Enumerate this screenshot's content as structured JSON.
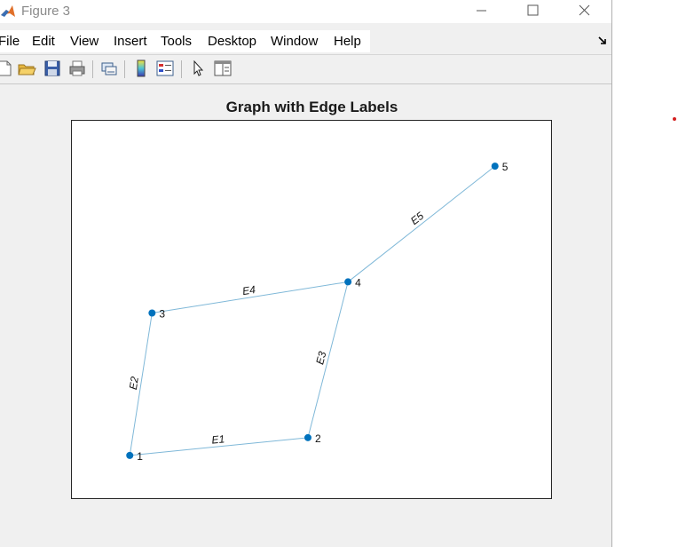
{
  "window": {
    "title": "Figure 3",
    "buttons": [
      "minimize",
      "maximize",
      "close"
    ]
  },
  "menu": {
    "items": [
      "File",
      "Edit",
      "View",
      "Insert",
      "Tools",
      "Desktop",
      "Window",
      "Help"
    ]
  },
  "toolbar": {
    "icons": [
      "new-figure-icon",
      "open-file-icon",
      "save-icon",
      "print-icon",
      "link-plot-icon",
      "colorbar-icon",
      "legend-icon",
      "pointer-icon",
      "property-inspector-icon"
    ]
  },
  "plot": {
    "title": "Graph with Edge Labels",
    "node_color": "#0072bd",
    "edge_color": "#7fb8d8"
  },
  "chart_data": {
    "type": "graph",
    "title": "Graph with Edge Labels",
    "nodes": [
      {
        "id": "1",
        "label": "1",
        "x": 1.0,
        "y": 1.0
      },
      {
        "id": "2",
        "label": "2",
        "x": 3.0,
        "y": 1.2
      },
      {
        "id": "3",
        "label": "3",
        "x": 1.25,
        "y": 2.6
      },
      {
        "id": "4",
        "label": "4",
        "x": 3.45,
        "y": 2.95
      },
      {
        "id": "5",
        "label": "5",
        "x": 5.1,
        "y": 4.25
      }
    ],
    "edges": [
      {
        "source": "1",
        "target": "2",
        "label": "E1"
      },
      {
        "source": "1",
        "target": "3",
        "label": "E2"
      },
      {
        "source": "2",
        "target": "4",
        "label": "E3"
      },
      {
        "source": "3",
        "target": "4",
        "label": "E4"
      },
      {
        "source": "4",
        "target": "5",
        "label": "E5"
      }
    ],
    "xlim": [
      0.35,
      5.75
    ],
    "ylim": [
      0.5,
      4.76
    ],
    "grid": false
  }
}
